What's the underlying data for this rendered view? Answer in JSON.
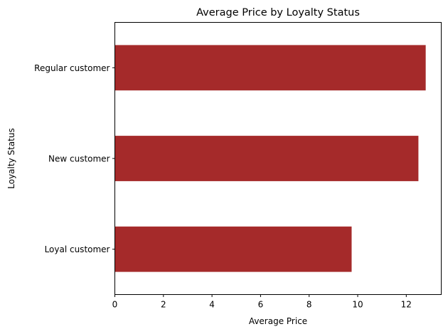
{
  "chart_data": {
    "type": "bar",
    "orientation": "horizontal",
    "title": "Average Price by Loyalty Status",
    "xlabel": "Average Price",
    "ylabel": "Loyalty Status",
    "categories": [
      "Loyal customer",
      "New customer",
      "Regular customer"
    ],
    "values": [
      9.75,
      12.5,
      12.8
    ],
    "xlim": [
      0,
      13.44
    ],
    "xticks": [
      0,
      2,
      4,
      6,
      8,
      10,
      12
    ],
    "bar_color": "#a52a2a",
    "grid": false,
    "legend": "none"
  }
}
